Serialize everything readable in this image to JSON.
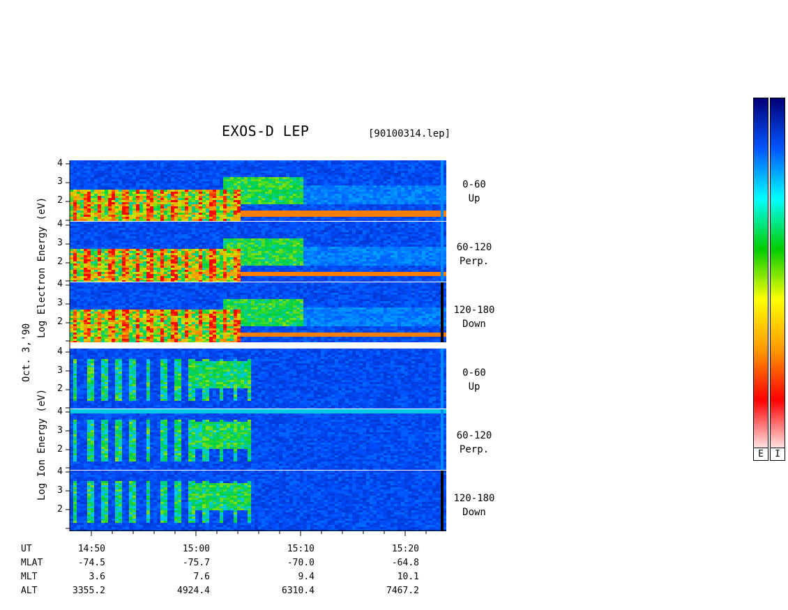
{
  "title": "EXOS-D LEP",
  "file_id": "[90100314.lep]",
  "date_label": "Oct. 3,'90",
  "electron_axis_label": "Log  Electron  Energy (eV)",
  "ion_axis_label": "Log  Ion  Energy (eV)",
  "y_ticks": [
    "4",
    "3",
    "2"
  ],
  "y_ticks_ion_bottom": [
    "2"
  ],
  "channels": [
    {
      "range": "0-60",
      "dir": "Up"
    },
    {
      "range": "60-120",
      "dir": "Perp."
    },
    {
      "range": "120-180",
      "dir": "Down"
    },
    {
      "range": "0-60",
      "dir": "Up"
    },
    {
      "range": "60-120",
      "dir": "Perp."
    },
    {
      "range": "120-180",
      "dir": "Down"
    }
  ],
  "colorbar_labels": [
    "E",
    "I"
  ],
  "row_labels": [
    "UT",
    "MLAT",
    "MLT",
    "ALT"
  ],
  "time_ticks": [
    "14:50",
    "15:00",
    "15:10",
    "15:20"
  ],
  "mlat": [
    "-74.5",
    "-75.7",
    "-70.0",
    "-64.8"
  ],
  "mlt": [
    "3.6",
    "7.6",
    "9.4",
    "10.1"
  ],
  "alt": [
    "3355.2",
    "4924.4",
    "6310.4",
    "7467.2"
  ],
  "chart_data": {
    "type": "heatmap",
    "title": "EXOS-D LEP",
    "x_axis": {
      "label": "UT",
      "range": [
        "14:47",
        "15:24"
      ],
      "ticks": [
        "14:50",
        "15:00",
        "15:10",
        "15:20"
      ]
    },
    "y_axis": {
      "label": "Log Energy (eV)",
      "range": [
        1,
        4.2
      ],
      "ticks": [
        2,
        3,
        4
      ]
    },
    "colorscale": [
      "#fff0f0",
      "#ff0000",
      "#ff9900",
      "#ffff00",
      "#00cc00",
      "#00ffff",
      "#0055ff",
      "#000077"
    ],
    "panels": [
      {
        "species": "Electron",
        "pitch_angle": "0-60",
        "direction": "Up"
      },
      {
        "species": "Electron",
        "pitch_angle": "60-120",
        "direction": "Perp."
      },
      {
        "species": "Electron",
        "pitch_angle": "120-180",
        "direction": "Down"
      },
      {
        "species": "Ion",
        "pitch_angle": "0-60",
        "direction": "Up"
      },
      {
        "species": "Ion",
        "pitch_angle": "60-120",
        "direction": "Perp."
      },
      {
        "species": "Ion",
        "pitch_angle": "120-180",
        "direction": "Down"
      }
    ]
  }
}
